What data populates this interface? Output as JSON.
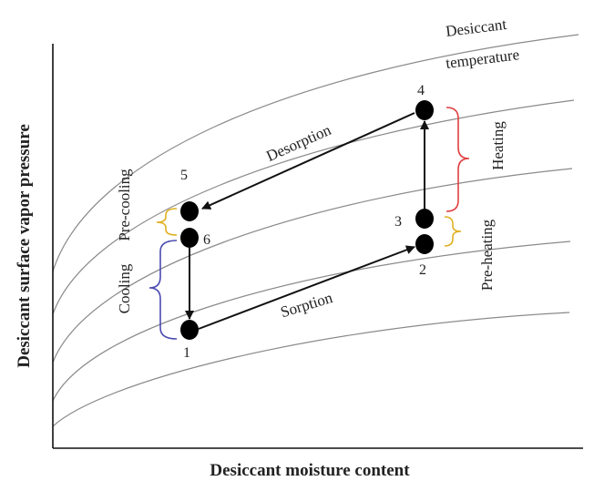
{
  "axes": {
    "x_title": "Desiccant moisture content",
    "y_title": "Desiccant surface vapor pressure"
  },
  "isotherm_legend": {
    "line1": "Desiccant",
    "line2": "temperature"
  },
  "points": {
    "p1": "1",
    "p2": "2",
    "p3": "3",
    "p4": "4",
    "p5": "5",
    "p6": "6"
  },
  "processes": {
    "desorption": "Desorption",
    "sorption": "Sorption",
    "heating": "Heating",
    "pre_heating": "Pre-heating",
    "pre_cooling": "Pre-cooling",
    "cooling": "Cooling"
  },
  "colors": {
    "heating_bracket": "#e04040",
    "pre_heating_bracket": "#e0b020",
    "pre_cooling_bracket": "#e0b020",
    "cooling_bracket": "#4a4ab0",
    "isotherm_curves": "#8a8a8a",
    "process_arrows": "#111111"
  }
}
